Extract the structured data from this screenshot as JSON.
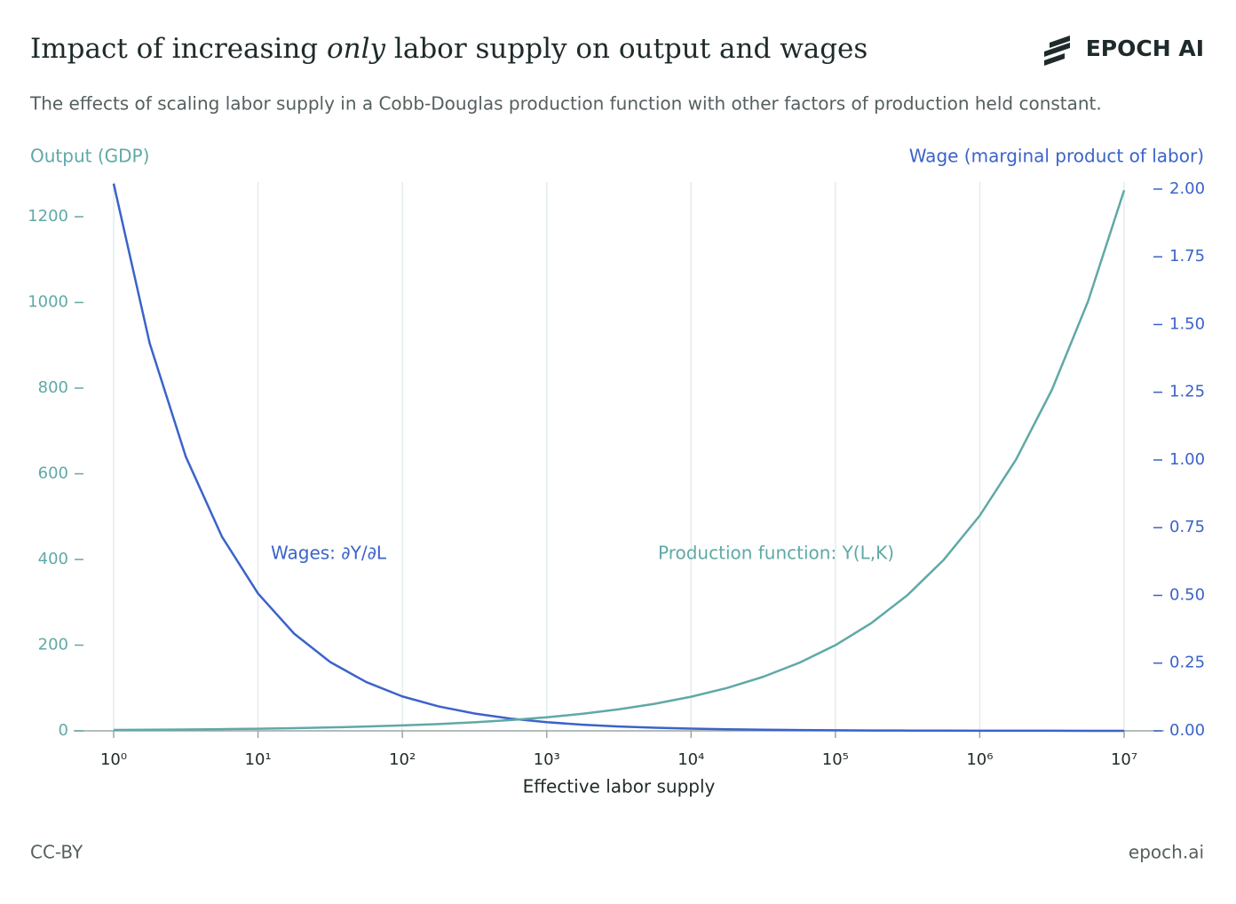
{
  "chart_data": {
    "type": "line",
    "title_parts": [
      "Impact of increasing ",
      "only",
      " labor supply on output and wages"
    ],
    "subtitle": "The effects of scaling labor supply in a Cobb-Douglas production function with other factors of production held constant.",
    "brand": "EPOCH AI",
    "footer_left": "CC-BY",
    "footer_right": "epoch.ai",
    "x_label": "Effective labor supply",
    "y_label": "Output (GDP)",
    "y2_label": "Wage (marginal product of labor)",
    "x_scale": "log",
    "grid": true,
    "xlim": [
      1,
      10000000
    ],
    "xticks": [
      {
        "value": 1,
        "label": "10⁰"
      },
      {
        "value": 10,
        "label": "10¹"
      },
      {
        "value": 100,
        "label": "10²"
      },
      {
        "value": 1000,
        "label": "10³"
      },
      {
        "value": 10000,
        "label": "10⁴"
      },
      {
        "value": 100000,
        "label": "10⁵"
      },
      {
        "value": 1000000,
        "label": "10⁶"
      },
      {
        "value": 10000000,
        "label": "10⁷"
      }
    ],
    "ylim": [
      0,
      1281
    ],
    "yticks": [
      0,
      200,
      400,
      600,
      800,
      1000,
      1200
    ],
    "y2lim": [
      0,
      2.026
    ],
    "y2ticks": [
      {
        "value": 0,
        "label": "0.00"
      },
      {
        "value": 0.25,
        "label": "0.25"
      },
      {
        "value": 0.5,
        "label": "0.50"
      },
      0.75,
      {
        "value": 1,
        "label": "1.00"
      },
      1.25,
      {
        "value": 1.5,
        "label": "1.50"
      },
      1.75,
      {
        "value": 2,
        "label": "2.00"
      }
    ],
    "x": [
      1,
      1.778,
      3.162,
      5.623,
      10,
      17.78,
      31.62,
      56.23,
      100,
      177.8,
      316.2,
      562.3,
      1000,
      1778,
      3162,
      5623,
      10000,
      17783,
      31623,
      56234,
      100000,
      177828,
      316228,
      562341,
      1000000,
      1778279,
      3162278,
      5623413,
      10000000
    ],
    "series": [
      {
        "name": "Wages: ∂Y/∂L",
        "color": "#3b63c9",
        "axis": "y2",
        "values": [
          2.02,
          1.43,
          1.012,
          0.717,
          0.507,
          0.359,
          0.254,
          0.18,
          0.127,
          0.0903,
          0.0639,
          0.0452,
          0.0319,
          0.0226,
          0.016,
          0.0114,
          0.008,
          0.0057,
          0.004,
          0.0028,
          0.002,
          0.0014,
          0.001,
          0.0007,
          0.0005,
          0.0004,
          0.0003,
          0.0002,
          0.0001
        ]
      },
      {
        "name": "Production function: Y(L,K)",
        "color": "#5fa9a6",
        "axis": "y",
        "values": [
          2,
          2.52,
          3.17,
          3.99,
          5.02,
          6.32,
          7.96,
          10,
          12.6,
          15.9,
          20,
          25.2,
          31.7,
          39.9,
          50.2,
          63.2,
          79.6,
          100.2,
          126.2,
          158.9,
          200,
          251.8,
          317,
          399.1,
          502.4,
          632.5,
          796.2,
          1002.4,
          1261.9
        ]
      }
    ]
  }
}
